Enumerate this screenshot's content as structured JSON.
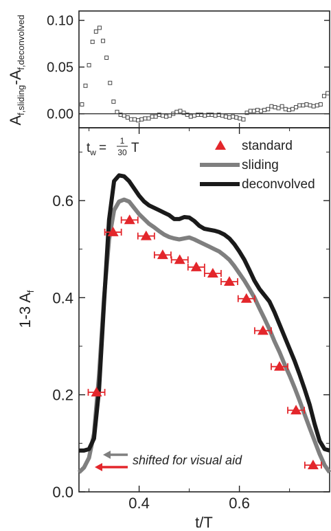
{
  "chart_data": [
    {
      "type": "scatter",
      "ylabel_main": "A",
      "ylabel_sub1": "f,sliding",
      "ylabel_mid": "-A",
      "ylabel_sub2": "f,deconvolved",
      "xlim": [
        0.28,
        0.78
      ],
      "ylim": [
        -0.015,
        0.11
      ],
      "yticks": [
        0.0,
        0.05,
        0.1
      ],
      "ytick_labels": [
        "0.00",
        "0.05",
        "0.10"
      ],
      "series": [
        {
          "marker": "open-square",
          "color": "#444444",
          "x": [
            0.286,
            0.293,
            0.3,
            0.307,
            0.314,
            0.321,
            0.328,
            0.335,
            0.342,
            0.349,
            0.356,
            0.363,
            0.37,
            0.377,
            0.384,
            0.391,
            0.398,
            0.405,
            0.412,
            0.419,
            0.426,
            0.433,
            0.44,
            0.447,
            0.454,
            0.461,
            0.468,
            0.475,
            0.482,
            0.489,
            0.496,
            0.503,
            0.51,
            0.517,
            0.524,
            0.531,
            0.538,
            0.545,
            0.552,
            0.559,
            0.566,
            0.573,
            0.58,
            0.587,
            0.594,
            0.601,
            0.608,
            0.615,
            0.622,
            0.629,
            0.636,
            0.643,
            0.65,
            0.657,
            0.664,
            0.671,
            0.678,
            0.685,
            0.692,
            0.699,
            0.706,
            0.713,
            0.72,
            0.727,
            0.734,
            0.741,
            0.748,
            0.755,
            0.762,
            0.769,
            0.776
          ],
          "y": [
            0.01,
            0.03,
            0.052,
            0.077,
            0.088,
            0.092,
            0.078,
            0.06,
            0.033,
            0.013,
            0.002,
            -0.001,
            -0.002,
            -0.004,
            -0.006,
            -0.006,
            -0.007,
            -0.006,
            -0.005,
            -0.005,
            -0.003,
            -0.003,
            -0.001,
            -0.002,
            -0.003,
            -0.002,
            0.0,
            0.002,
            0.003,
            0.001,
            -0.001,
            -0.003,
            -0.002,
            -0.001,
            -0.001,
            -0.002,
            -0.001,
            -0.001,
            -0.002,
            -0.001,
            -0.002,
            -0.003,
            -0.004,
            -0.003,
            -0.004,
            -0.005,
            -0.006,
            0.001,
            0.003,
            0.003,
            0.004,
            0.003,
            0.004,
            0.005,
            0.008,
            0.007,
            0.006,
            0.008,
            0.005,
            0.004,
            0.005,
            0.007,
            0.009,
            0.009,
            0.01,
            0.009,
            0.008,
            0.009,
            0.01,
            0.019,
            0.022
          ]
        }
      ]
    },
    {
      "type": "line",
      "xlabel": "t/T",
      "ylabel": "1-3 A",
      "ylabel_sub": "f",
      "xlim": [
        0.28,
        0.78
      ],
      "ylim": [
        0.0,
        0.75
      ],
      "xticks": [
        0.4,
        0.6
      ],
      "xtick_labels": [
        "0.4",
        "0.6"
      ],
      "yticks": [
        0.0,
        0.2,
        0.4,
        0.6
      ],
      "ytick_labels": [
        "0.0",
        "0.2",
        "0.4",
        "0.6"
      ],
      "annotation_tw_label": "t",
      "annotation_tw_sub": "w",
      "annotation_tw_eq": "=",
      "annotation_tw_num": "1",
      "annotation_tw_den": "30",
      "annotation_tw_T": "T",
      "annotation_shift": "shifted for visual aid",
      "legend_position": "top-right",
      "series": [
        {
          "name": "standard",
          "marker": "triangle",
          "color": "#e3262b",
          "x": [
            0.315,
            0.348,
            0.381,
            0.414,
            0.447,
            0.481,
            0.514,
            0.547,
            0.58,
            0.614,
            0.647,
            0.68,
            0.713,
            0.747
          ],
          "y": [
            0.205,
            0.535,
            0.56,
            0.527,
            0.488,
            0.478,
            0.463,
            0.45,
            0.433,
            0.398,
            0.332,
            0.258,
            0.168,
            0.055
          ],
          "xerr": 0.0165
        },
        {
          "name": "sliding",
          "color": "#7f7f7f",
          "x": [
            0.28,
            0.29,
            0.3,
            0.31,
            0.32,
            0.33,
            0.34,
            0.35,
            0.36,
            0.37,
            0.38,
            0.39,
            0.4,
            0.41,
            0.42,
            0.43,
            0.44,
            0.45,
            0.46,
            0.47,
            0.48,
            0.49,
            0.5,
            0.51,
            0.52,
            0.53,
            0.54,
            0.55,
            0.56,
            0.57,
            0.58,
            0.59,
            0.6,
            0.61,
            0.62,
            0.63,
            0.64,
            0.65,
            0.66,
            0.67,
            0.68,
            0.69,
            0.7,
            0.71,
            0.72,
            0.73,
            0.74,
            0.75,
            0.76,
            0.77,
            0.78
          ],
          "y": [
            0.04,
            0.05,
            0.07,
            0.12,
            0.24,
            0.4,
            0.52,
            0.58,
            0.598,
            0.602,
            0.598,
            0.585,
            0.572,
            0.562,
            0.552,
            0.545,
            0.537,
            0.53,
            0.525,
            0.522,
            0.52,
            0.522,
            0.524,
            0.52,
            0.515,
            0.51,
            0.505,
            0.5,
            0.495,
            0.487,
            0.478,
            0.465,
            0.45,
            0.435,
            0.418,
            0.4,
            0.378,
            0.357,
            0.335,
            0.31,
            0.288,
            0.263,
            0.24,
            0.215,
            0.188,
            0.16,
            0.132,
            0.105,
            0.078,
            0.055,
            0.04
          ]
        },
        {
          "name": "deconvolved",
          "color": "#1a1a1a",
          "x": [
            0.28,
            0.29,
            0.3,
            0.31,
            0.32,
            0.33,
            0.34,
            0.35,
            0.36,
            0.37,
            0.38,
            0.39,
            0.4,
            0.41,
            0.42,
            0.43,
            0.44,
            0.45,
            0.46,
            0.47,
            0.48,
            0.49,
            0.5,
            0.51,
            0.52,
            0.53,
            0.54,
            0.55,
            0.56,
            0.57,
            0.58,
            0.59,
            0.6,
            0.61,
            0.62,
            0.63,
            0.64,
            0.65,
            0.66,
            0.67,
            0.68,
            0.69,
            0.7,
            0.71,
            0.72,
            0.73,
            0.74,
            0.75,
            0.76,
            0.77,
            0.78
          ],
          "y": [
            0.085,
            0.085,
            0.088,
            0.11,
            0.21,
            0.39,
            0.56,
            0.64,
            0.652,
            0.65,
            0.64,
            0.625,
            0.61,
            0.598,
            0.59,
            0.585,
            0.58,
            0.575,
            0.57,
            0.562,
            0.562,
            0.566,
            0.565,
            0.558,
            0.548,
            0.542,
            0.54,
            0.538,
            0.535,
            0.53,
            0.522,
            0.51,
            0.495,
            0.478,
            0.457,
            0.435,
            0.418,
            0.405,
            0.392,
            0.37,
            0.345,
            0.32,
            0.295,
            0.27,
            0.242,
            0.212,
            0.18,
            0.14,
            0.105,
            0.088,
            0.085
          ]
        }
      ]
    }
  ]
}
